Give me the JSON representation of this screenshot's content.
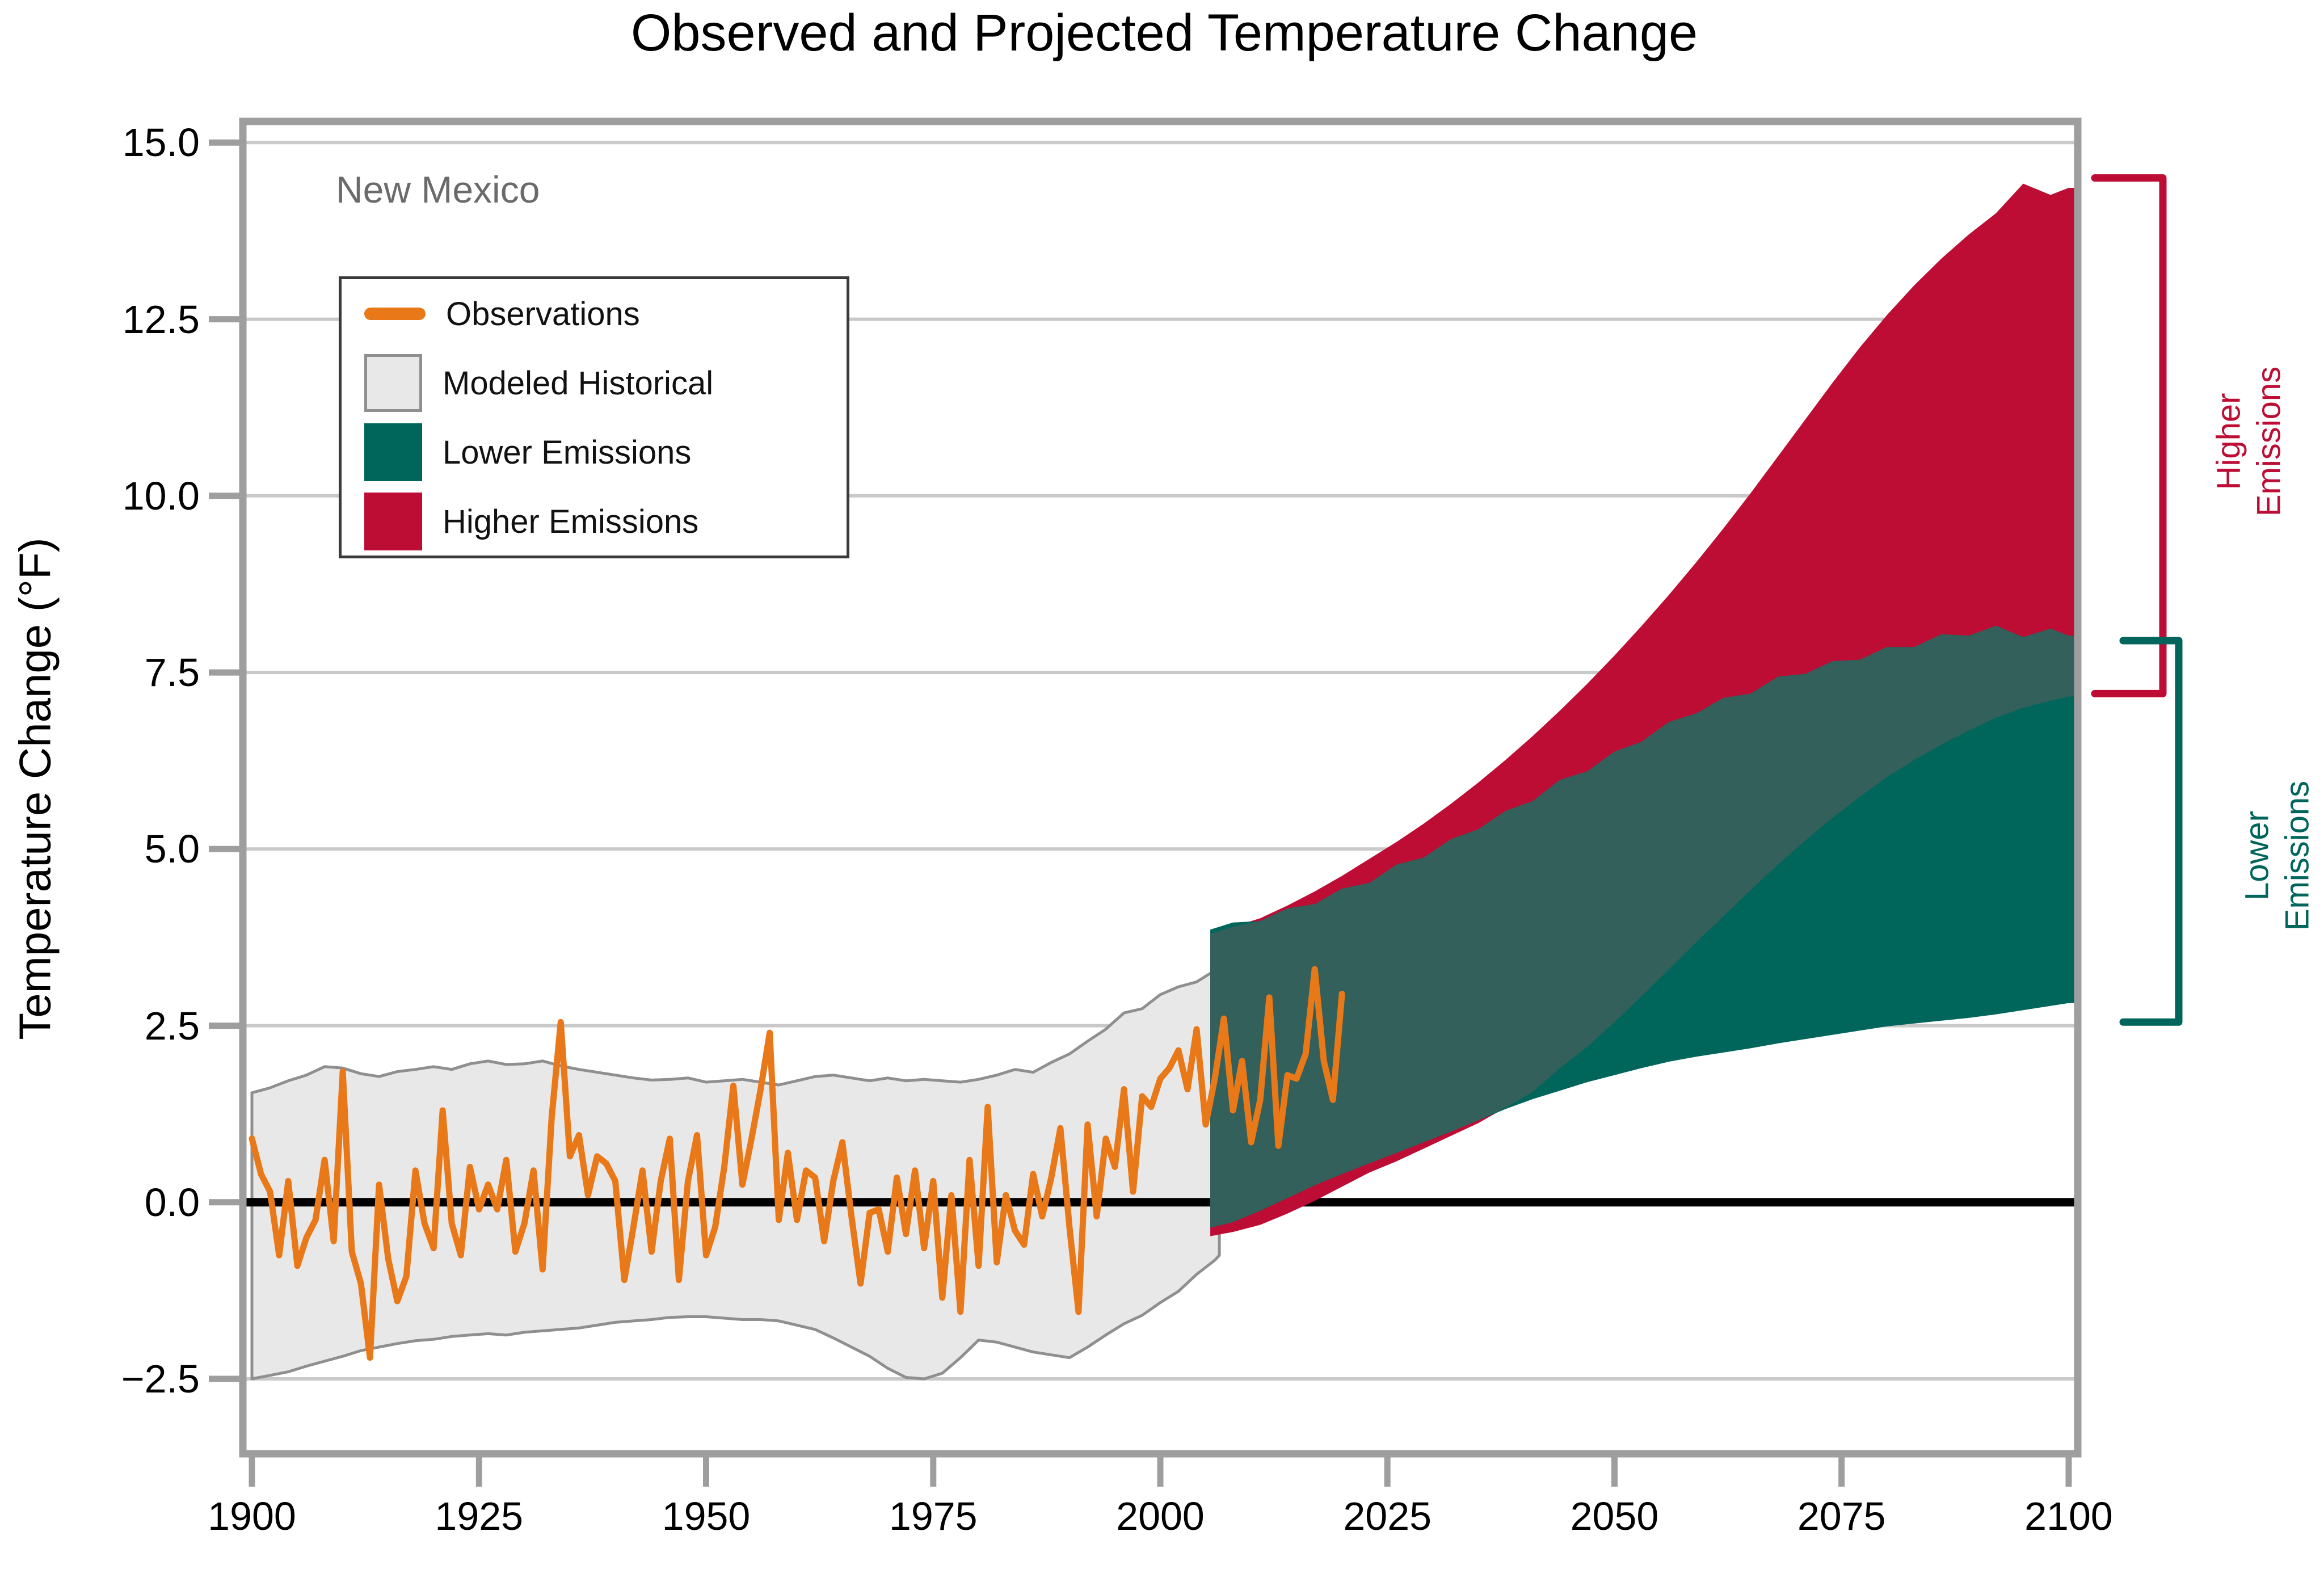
{
  "title": "Observed and Projected Temperature Change",
  "subtitle": "New Mexico",
  "y_axis": {
    "label": "Temperature Change (°F)",
    "ticks": [
      {
        "label": "15.0",
        "value": 15.0
      },
      {
        "label": "12.5",
        "value": 12.5
      },
      {
        "label": "10.0",
        "value": 10.0
      },
      {
        "label": "7.5",
        "value": 7.5
      },
      {
        "label": "5.0",
        "value": 5.0
      },
      {
        "label": "2.5",
        "value": 2.5
      },
      {
        "label": "0.0",
        "value": 0.0
      },
      {
        "label": "−2.5",
        "value": -2.5
      }
    ]
  },
  "x_axis": {
    "ticks": [
      {
        "label": "1900",
        "value": 1900
      },
      {
        "label": "1925",
        "value": 1925
      },
      {
        "label": "1950",
        "value": 1950
      },
      {
        "label": "1975",
        "value": 1975
      },
      {
        "label": "2000",
        "value": 2000
      },
      {
        "label": "2025",
        "value": 2025
      },
      {
        "label": "2050",
        "value": 2050
      },
      {
        "label": "2075",
        "value": 2075
      },
      {
        "label": "2100",
        "value": 2100
      }
    ]
  },
  "legend": {
    "items": [
      {
        "label": "Observations",
        "type": "line",
        "color": "#E87818"
      },
      {
        "label": "Modeled Historical",
        "type": "box",
        "color": "#E8E8E8",
        "border": "#8F8F8F"
      },
      {
        "label": "Lower Emissions",
        "type": "box",
        "color": "#00665C"
      },
      {
        "label": "Higher Emissions",
        "type": "box",
        "color": "#BD0D35"
      }
    ]
  },
  "annotations": {
    "higher": {
      "lines": [
        "Higher",
        "Emissions"
      ],
      "color": "#BD0D35",
      "from": 7.2,
      "to": 14.5
    },
    "lower": {
      "lines": [
        "Lower",
        "Emissions"
      ],
      "color": "#00665C",
      "from": 2.55,
      "to": 7.95
    }
  },
  "colors": {
    "observations": "#E87818",
    "modeled_historical": "#E8E8E8",
    "modeled_historical_edge": "#8F8F8F",
    "lower_emissions": "#00665C",
    "higher_emissions": "#BD0D35",
    "overlap": "#33605A",
    "gridline": "#C9C9C9",
    "axis": "#9E9E9E",
    "zero_line": "#000000",
    "title_text": "#000000",
    "subtitle_text": "#6A6A6A"
  },
  "chart_data": {
    "type": "area",
    "title": "Observed and Projected Temperature Change",
    "region": "New Mexico",
    "ylabel": "Temperature Change (°F)",
    "xlim": [
      1899,
      2101
    ],
    "ylim": [
      -3.56,
      15.3
    ],
    "baseline": 0,
    "observations": {
      "start_year": 1900,
      "end_year": 2020,
      "values": [
        0.9,
        0.4,
        0.15,
        -0.75,
        0.3,
        -0.9,
        -0.5,
        -0.25,
        0.6,
        -0.55,
        1.85,
        -0.7,
        -1.15,
        -2.2,
        0.25,
        -0.8,
        -1.4,
        -1.05,
        0.45,
        -0.3,
        -0.65,
        1.3,
        -0.3,
        -0.75,
        0.5,
        -0.1,
        0.25,
        -0.1,
        0.6,
        -0.7,
        -0.3,
        0.45,
        -0.95,
        1.2,
        2.55,
        0.65,
        0.95,
        0.1,
        0.65,
        0.55,
        0.3,
        -1.1,
        -0.35,
        0.45,
        -0.7,
        0.3,
        0.9,
        -1.1,
        0.3,
        0.95,
        -0.75,
        -0.35,
        0.5,
        1.65,
        0.25,
        0.9,
        1.6,
        2.4,
        -0.25,
        0.7,
        -0.25,
        0.45,
        0.35,
        -0.55,
        0.3,
        0.85,
        -0.2,
        -1.15,
        -0.15,
        -0.1,
        -0.7,
        0.35,
        -0.45,
        0.45,
        -0.65,
        0.3,
        -1.35,
        0.1,
        -1.55,
        0.6,
        -0.9,
        1.35,
        -0.85,
        0.1,
        -0.4,
        -0.6,
        0.4,
        -0.2,
        0.35,
        1.05,
        -0.35,
        -1.55,
        1.1,
        -0.2,
        0.9,
        0.5,
        1.6,
        0.15,
        1.5,
        1.35,
        1.75,
        1.9,
        2.15,
        1.6,
        2.45,
        1.1,
        1.75,
        2.6,
        1.3,
        2.0,
        0.85,
        1.45,
        2.9,
        0.8,
        1.8,
        1.75,
        2.1,
        3.3,
        2.0,
        1.45,
        2.95
      ]
    },
    "modeled_historical": {
      "years": [
        1900,
        1902,
        1904,
        1906,
        1908,
        1910,
        1912,
        1914,
        1916,
        1918,
        1920,
        1922,
        1924,
        1926,
        1928,
        1930,
        1932,
        1934,
        1936,
        1938,
        1940,
        1942,
        1944,
        1946,
        1948,
        1950,
        1952,
        1954,
        1956,
        1958,
        1960,
        1962,
        1964,
        1966,
        1968,
        1970,
        1972,
        1974,
        1976,
        1978,
        1980,
        1982,
        1984,
        1986,
        1988,
        1990,
        1992,
        1994,
        1996,
        1998,
        2000,
        2002,
        2004,
        2006,
        2006.5
      ],
      "upper": [
        1.55,
        1.62,
        1.72,
        1.8,
        1.92,
        1.9,
        1.82,
        1.78,
        1.85,
        1.88,
        1.92,
        1.88,
        1.96,
        2.0,
        1.95,
        1.96,
        2.0,
        1.93,
        1.88,
        1.84,
        1.8,
        1.76,
        1.73,
        1.74,
        1.76,
        1.7,
        1.72,
        1.74,
        1.7,
        1.66,
        1.72,
        1.78,
        1.8,
        1.76,
        1.72,
        1.76,
        1.72,
        1.74,
        1.72,
        1.7,
        1.74,
        1.8,
        1.88,
        1.84,
        1.98,
        2.1,
        2.28,
        2.45,
        2.68,
        2.74,
        2.94,
        3.05,
        3.12,
        3.28,
        3.3
      ],
      "lower": [
        -2.5,
        -2.45,
        -2.4,
        -2.32,
        -2.25,
        -2.18,
        -2.1,
        -2.05,
        -2.0,
        -1.96,
        -1.94,
        -1.9,
        -1.88,
        -1.86,
        -1.88,
        -1.84,
        -1.82,
        -1.8,
        -1.78,
        -1.74,
        -1.7,
        -1.68,
        -1.66,
        -1.63,
        -1.62,
        -1.62,
        -1.64,
        -1.66,
        -1.66,
        -1.68,
        -1.74,
        -1.8,
        -1.92,
        -2.05,
        -2.18,
        -2.35,
        -2.48,
        -2.5,
        -2.42,
        -2.2,
        -1.95,
        -1.98,
        -2.05,
        -2.12,
        -2.16,
        -2.2,
        -2.05,
        -1.88,
        -1.72,
        -1.6,
        -1.42,
        -1.26,
        -1.02,
        -0.82,
        -0.75
      ]
    },
    "lower_emissions": {
      "years": [
        2005.5,
        2008,
        2011,
        2014,
        2017,
        2020,
        2023,
        2026,
        2029,
        2032,
        2035,
        2038,
        2041,
        2044,
        2047,
        2050,
        2053,
        2056,
        2059,
        2062,
        2065,
        2068,
        2071,
        2074,
        2077,
        2080,
        2083,
        2086,
        2089,
        2092,
        2095,
        2098,
        2100,
        2101
      ],
      "upper": [
        3.86,
        3.96,
        3.98,
        4.16,
        4.22,
        4.44,
        4.52,
        4.78,
        4.88,
        5.14,
        5.28,
        5.54,
        5.68,
        5.98,
        6.1,
        6.38,
        6.52,
        6.8,
        6.92,
        7.14,
        7.2,
        7.44,
        7.48,
        7.66,
        7.68,
        7.86,
        7.86,
        8.04,
        8.02,
        8.16,
        8.0,
        8.12,
        8.02,
        8.02
      ],
      "lower": [
        -0.36,
        -0.28,
        -0.12,
        0.06,
        0.24,
        0.4,
        0.55,
        0.7,
        0.85,
        1.0,
        1.16,
        1.32,
        1.46,
        1.58,
        1.7,
        1.8,
        1.9,
        1.99,
        2.06,
        2.12,
        2.18,
        2.25,
        2.31,
        2.37,
        2.43,
        2.49,
        2.53,
        2.57,
        2.61,
        2.66,
        2.72,
        2.78,
        2.82,
        2.82
      ]
    },
    "higher_emissions": {
      "years": [
        2005.5,
        2008,
        2011,
        2014,
        2017,
        2020,
        2023,
        2026,
        2029,
        2032,
        2035,
        2038,
        2041,
        2044,
        2047,
        2050,
        2053,
        2056,
        2059,
        2062,
        2065,
        2068,
        2071,
        2074,
        2077,
        2080,
        2083,
        2086,
        2089,
        2092,
        2095,
        2098,
        2100,
        2101
      ],
      "upper": [
        3.8,
        3.9,
        4.02,
        4.2,
        4.4,
        4.62,
        4.86,
        5.1,
        5.36,
        5.64,
        5.94,
        6.26,
        6.6,
        6.96,
        7.34,
        7.74,
        8.16,
        8.6,
        9.06,
        9.54,
        10.04,
        10.56,
        11.08,
        11.6,
        12.1,
        12.56,
        12.98,
        13.36,
        13.7,
        14.0,
        14.42,
        14.26,
        14.36,
        14.36
      ],
      "lower": [
        -0.48,
        -0.42,
        -0.32,
        -0.16,
        0.02,
        0.22,
        0.42,
        0.58,
        0.76,
        0.94,
        1.12,
        1.34,
        1.56,
        1.9,
        2.2,
        2.55,
        2.92,
        3.3,
        3.68,
        4.05,
        4.42,
        4.78,
        5.12,
        5.44,
        5.74,
        6.02,
        6.26,
        6.48,
        6.68,
        6.86,
        7.0,
        7.1,
        7.16,
        7.16
      ]
    }
  }
}
